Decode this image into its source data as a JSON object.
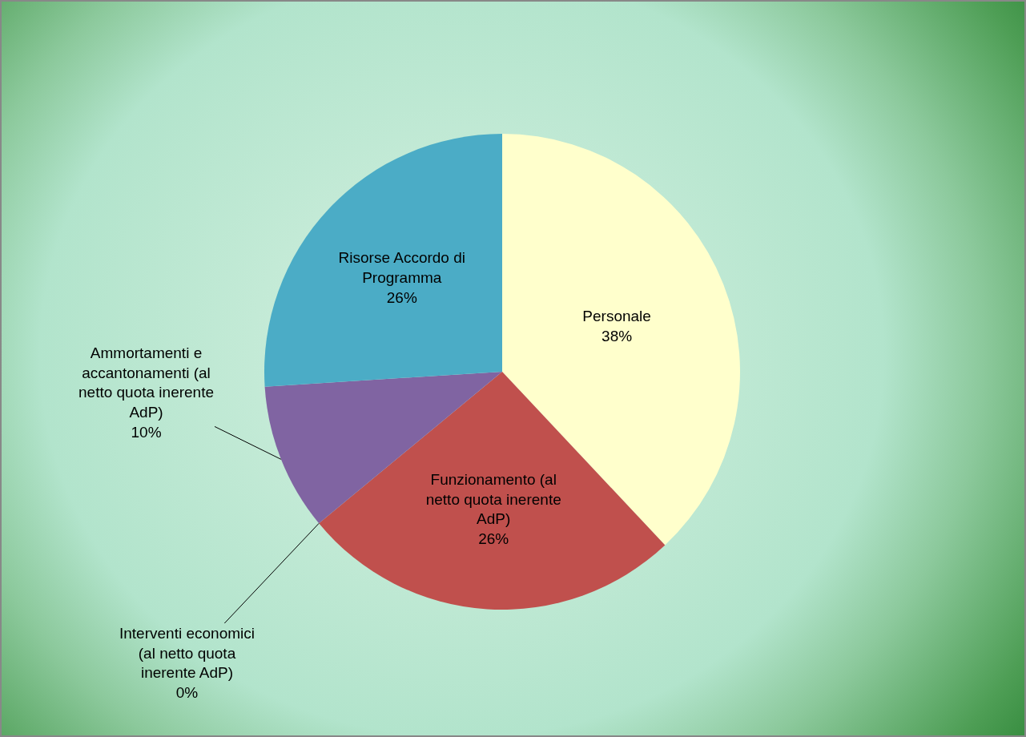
{
  "chart_data": {
    "type": "pie",
    "categories": [
      "Personale",
      "Funzionamento (al netto quota inerente AdP)",
      "Interventi economici (al netto quota inerente AdP)",
      "Ammortamenti e accantonamenti (al netto quota inerente AdP)",
      "Risorse Accordo di Programma"
    ],
    "values": [
      38,
      26,
      0,
      10,
      26
    ],
    "value_labels": [
      "38%",
      "26%",
      "0%",
      "10%",
      "26%"
    ],
    "colors": [
      "#ffffcc",
      "#c0504d",
      "#9bbb59",
      "#8064a2",
      "#4bacc6"
    ],
    "legend": false
  }
}
